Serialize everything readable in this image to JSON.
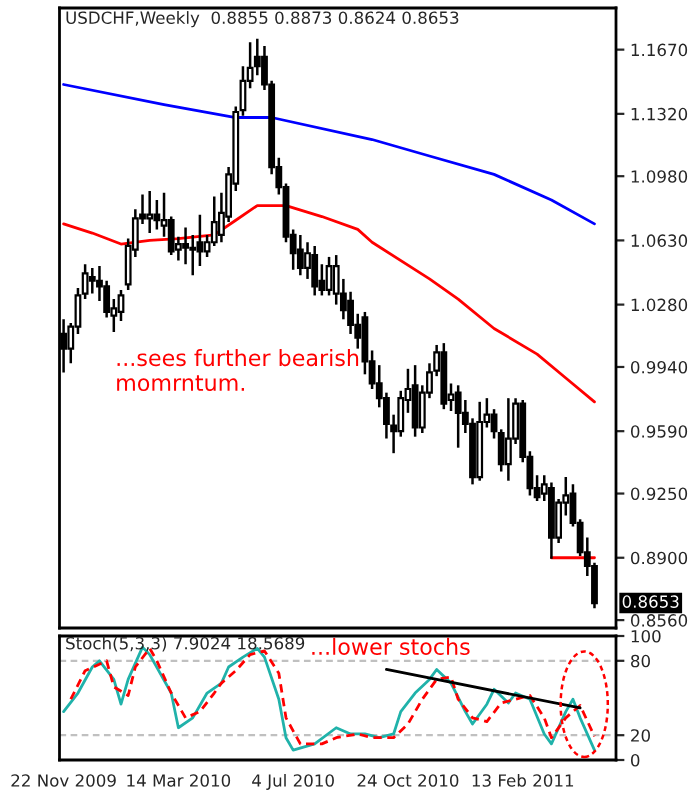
{
  "chart_data": [
    {
      "type": "candlestick",
      "title": "USDCHF,Weekly  0.8855 0.8873 0.8624 0.8653",
      "x": [
        "2009-11-22",
        "2009-11-29",
        "2009-12-06",
        "2009-12-13",
        "2009-12-20",
        "2009-12-27",
        "2010-01-03",
        "2010-01-10",
        "2010-01-17",
        "2010-01-24",
        "2010-01-31",
        "2010-02-07",
        "2010-02-14",
        "2010-02-21",
        "2010-02-28",
        "2010-03-07",
        "2010-03-14",
        "2010-03-21",
        "2010-03-28",
        "2010-04-04",
        "2010-04-11",
        "2010-04-18",
        "2010-04-25",
        "2010-05-02",
        "2010-05-09",
        "2010-05-16",
        "2010-05-23",
        "2010-05-30",
        "2010-06-06",
        "2010-06-13",
        "2010-06-20",
        "2010-06-27",
        "2010-07-04",
        "2010-07-11",
        "2010-07-18",
        "2010-07-25",
        "2010-08-01",
        "2010-08-08",
        "2010-08-15",
        "2010-08-22",
        "2010-08-29",
        "2010-09-05",
        "2010-09-12",
        "2010-09-19",
        "2010-09-26",
        "2010-10-03",
        "2010-10-10",
        "2010-10-17",
        "2010-10-24",
        "2010-10-31",
        "2010-11-07",
        "2010-11-14",
        "2010-11-21",
        "2010-11-28",
        "2010-12-05",
        "2010-12-12",
        "2010-12-19",
        "2010-12-26",
        "2011-01-02",
        "2011-01-09",
        "2011-01-16",
        "2011-01-23",
        "2011-01-30",
        "2011-02-06",
        "2011-02-13",
        "2011-02-20",
        "2011-02-27",
        "2011-03-06",
        "2011-03-13",
        "2011-03-20",
        "2011-03-27",
        "2011-04-03",
        "2011-04-10",
        "2011-04-17",
        "2011-04-24"
      ],
      "ohlc": [
        [
          1.012,
          1.02,
          0.991,
          1.004
        ],
        [
          1.004,
          1.018,
          0.996,
          1.016
        ],
        [
          1.016,
          1.037,
          1.012,
          1.033
        ],
        [
          1.034,
          1.05,
          1.031,
          1.045
        ],
        [
          1.043,
          1.048,
          1.034,
          1.041
        ],
        [
          1.041,
          1.049,
          1.03,
          1.038
        ],
        [
          1.038,
          1.041,
          1.021,
          1.024
        ],
        [
          1.022,
          1.031,
          1.013,
          1.026
        ],
        [
          1.024,
          1.036,
          1.019,
          1.033
        ],
        [
          1.039,
          1.064,
          1.036,
          1.06
        ],
        [
          1.058,
          1.08,
          1.054,
          1.075
        ],
        [
          1.077,
          1.088,
          1.072,
          1.075
        ],
        [
          1.075,
          1.09,
          1.067,
          1.077
        ],
        [
          1.077,
          1.085,
          1.069,
          1.074
        ],
        [
          1.071,
          1.089,
          1.065,
          1.074
        ],
        [
          1.074,
          1.076,
          1.055,
          1.057
        ],
        [
          1.058,
          1.065,
          1.052,
          1.061
        ],
        [
          1.061,
          1.07,
          1.05,
          1.059
        ],
        [
          1.059,
          1.066,
          1.044,
          1.058
        ],
        [
          1.062,
          1.077,
          1.049,
          1.057
        ],
        [
          1.057,
          1.066,
          1.054,
          1.062
        ],
        [
          1.062,
          1.087,
          1.06,
          1.073
        ],
        [
          1.066,
          1.089,
          1.062,
          1.078
        ],
        [
          1.076,
          1.103,
          1.073,
          1.099
        ],
        [
          1.094,
          1.136,
          1.09,
          1.133
        ],
        [
          1.134,
          1.158,
          1.131,
          1.15
        ],
        [
          1.15,
          1.171,
          1.146,
          1.157
        ],
        [
          1.163,
          1.173,
          1.153,
          1.158
        ],
        [
          1.163,
          1.169,
          1.145,
          1.148
        ],
        [
          1.148,
          1.15,
          1.099,
          1.103
        ],
        [
          1.103,
          1.108,
          1.088,
          1.092
        ],
        [
          1.092,
          1.094,
          1.062,
          1.065
        ],
        [
          1.066,
          1.069,
          1.047,
          1.056
        ],
        [
          1.058,
          1.066,
          1.044,
          1.048
        ],
        [
          1.048,
          1.062,
          1.042,
          1.056
        ],
        [
          1.055,
          1.06,
          1.033,
          1.038
        ],
        [
          1.041,
          1.05,
          1.033,
          1.036
        ],
        [
          1.036,
          1.054,
          1.033,
          1.049
        ],
        [
          1.034,
          1.055,
          1.028,
          1.049
        ],
        [
          1.034,
          1.042,
          1.02,
          1.025
        ],
        [
          1.03,
          1.035,
          1.012,
          1.017
        ],
        [
          1.017,
          1.023,
          1.004,
          1.01
        ],
        [
          1.021,
          1.024,
          0.99,
          0.997
        ],
        [
          0.997,
          1.003,
          0.982,
          0.985
        ],
        [
          0.985,
          0.995,
          0.972,
          0.977
        ],
        [
          0.977,
          0.98,
          0.955,
          0.963
        ],
        [
          0.962,
          0.968,
          0.947,
          0.959
        ],
        [
          0.959,
          0.981,
          0.956,
          0.977
        ],
        [
          0.976,
          0.993,
          0.969,
          0.982
        ],
        [
          0.984,
          0.995,
          0.956,
          0.961
        ],
        [
          0.961,
          0.984,
          0.958,
          0.98
        ],
        [
          0.98,
          0.996,
          0.977,
          0.991
        ],
        [
          0.992,
          1.006,
          0.989,
          1.002
        ],
        [
          1.002,
          1.007,
          0.971,
          0.974
        ],
        [
          0.976,
          0.985,
          0.97,
          0.979
        ],
        [
          0.98,
          0.984,
          0.95,
          0.969
        ],
        [
          0.969,
          0.976,
          0.958,
          0.963
        ],
        [
          0.963,
          0.966,
          0.93,
          0.934
        ],
        [
          0.934,
          0.975,
          0.932,
          0.964
        ],
        [
          0.964,
          0.977,
          0.961,
          0.968
        ],
        [
          0.968,
          0.971,
          0.955,
          0.959
        ],
        [
          0.958,
          0.96,
          0.937,
          0.941
        ],
        [
          0.941,
          0.977,
          0.932,
          0.955
        ],
        [
          0.955,
          0.977,
          0.952,
          0.974
        ],
        [
          0.974,
          0.976,
          0.942,
          0.945
        ],
        [
          0.945,
          0.948,
          0.924,
          0.928
        ],
        [
          0.928,
          0.935,
          0.921,
          0.923
        ],
        [
          0.925,
          0.935,
          0.921,
          0.93
        ],
        [
          0.928,
          0.931,
          0.8895,
          0.901
        ],
        [
          0.901,
          0.922,
          0.898,
          0.92
        ],
        [
          0.92,
          0.934,
          0.913,
          0.924
        ],
        [
          0.925,
          0.93,
          0.907,
          0.909
        ],
        [
          0.909,
          0.911,
          0.891,
          0.893
        ],
        [
          0.893,
          0.901,
          0.88,
          0.8855
        ],
        [
          0.8855,
          0.8873,
          0.8624,
          0.8653
        ]
      ],
      "series": [
        {
          "type": "line",
          "color": "#0000ff",
          "x": [
            "2009-11-22",
            "2010-02-28",
            "2010-05-09",
            "2010-06-13",
            "2010-09-19",
            "2010-11-14",
            "2011-01-16",
            "2011-03-13",
            "2011-04-24"
          ],
          "values": [
            1.148,
            1.137,
            1.13,
            1.13,
            1.118,
            1.109,
            1.099,
            1.085,
            1.072
          ]
        },
        {
          "type": "line",
          "color": "#ff0000",
          "x": [
            "2009-11-22",
            "2009-12-20",
            "2010-01-17",
            "2010-02-14",
            "2010-03-14",
            "2010-04-18",
            "2010-05-09",
            "2010-05-30",
            "2010-06-27",
            "2010-08-01",
            "2010-09-05",
            "2010-09-19",
            "2010-11-14",
            "2010-12-12",
            "2011-01-16",
            "2011-02-27",
            "2011-03-27",
            "2011-04-24"
          ],
          "values": [
            1.072,
            1.067,
            1.061,
            1.063,
            1.064,
            1.066,
            1.074,
            1.082,
            1.082,
            1.076,
            1.069,
            1.062,
            1.042,
            1.031,
            1.015,
            1.001,
            0.988,
            0.975
          ]
        },
        {
          "type": "line",
          "color": "#ff0000",
          "x": [
            "2011-03-13",
            "2011-04-24"
          ],
          "values": [
            0.89,
            0.89
          ]
        }
      ],
      "xlim": [
        "2009-11-18",
        "2011-05-15"
      ],
      "ylim": [
        0.8517,
        1.1897
      ],
      "yticks": [
        {
          "value": 0.856,
          "label": "0.8560"
        },
        {
          "value": 0.89,
          "label": "0.8900"
        },
        {
          "value": 0.925,
          "label": "0.9250"
        },
        {
          "value": 0.959,
          "label": "0.9590"
        },
        {
          "value": 0.994,
          "label": "0.9940"
        },
        {
          "value": 1.028,
          "label": "1.0280"
        },
        {
          "value": 1.063,
          "label": "1.0630"
        },
        {
          "value": 1.098,
          "label": "1.0980"
        },
        {
          "value": 1.132,
          "label": "1.1320"
        },
        {
          "value": 1.167,
          "label": "1.1670"
        }
      ],
      "tick_labels": "y",
      "annotations": [
        "...sees further bearish\nmomrntum.",
        {
          "text": "0.8653",
          "x": "2011-04-24",
          "y": 0.8653
        }
      ]
    },
    {
      "type": "line",
      "title": "Stoch(5,3,3) 7.9024 18.5689",
      "series": [
        {
          "type": "line",
          "color": "#20b2aa",
          "x": [
            "2009-11-22",
            "2009-12-06",
            "2009-12-20",
            "2009-12-27",
            "2010-01-10",
            "2010-01-17",
            "2010-01-24",
            "2010-02-07",
            "2010-02-14",
            "2010-03-07",
            "2010-03-14",
            "2010-03-28",
            "2010-04-11",
            "2010-04-25",
            "2010-05-02",
            "2010-05-16",
            "2010-05-30",
            "2010-06-06",
            "2010-06-20",
            "2010-06-27",
            "2010-07-04",
            "2010-07-25",
            "2010-08-15",
            "2010-08-29",
            "2010-09-12",
            "2010-09-26",
            "2010-10-10",
            "2010-10-17",
            "2010-10-31",
            "2010-11-14",
            "2010-11-21",
            "2010-12-05",
            "2010-12-19",
            "2010-12-26",
            "2011-01-09",
            "2011-01-16",
            "2011-01-30",
            "2011-02-06",
            "2011-02-20",
            "2011-03-06",
            "2011-03-13",
            "2011-03-27",
            "2011-04-03",
            "2011-04-10",
            "2011-04-24"
          ],
          "values": [
            39,
            54,
            75,
            80,
            65,
            45,
            65,
            91,
            85,
            54,
            26,
            34,
            54,
            62,
            75,
            83,
            90,
            83,
            49,
            18,
            8,
            13,
            26,
            21,
            21,
            18,
            21,
            39,
            54,
            65,
            73,
            62,
            39,
            29,
            45,
            57,
            46,
            54,
            49,
            21,
            13,
            39,
            49,
            34,
            8
          ]
        },
        {
          "type": "line",
          "color": "#ff0000",
          "line_style": "dashed",
          "x": [
            "2009-11-29",
            "2009-12-13",
            "2010-01-03",
            "2010-01-10",
            "2010-01-24",
            "2010-01-31",
            "2010-02-14",
            "2010-02-21",
            "2010-03-07",
            "2010-03-21",
            "2010-04-04",
            "2010-04-18",
            "2010-04-25",
            "2010-05-09",
            "2010-05-23",
            "2010-06-06",
            "2010-06-20",
            "2010-06-27",
            "2010-07-11",
            "2010-08-01",
            "2010-08-15",
            "2010-09-05",
            "2010-09-19",
            "2010-10-10",
            "2010-10-24",
            "2010-11-07",
            "2010-11-21",
            "2010-12-05",
            "2010-12-12",
            "2010-12-26",
            "2011-01-09",
            "2011-01-23",
            "2011-02-06",
            "2011-02-20",
            "2011-03-06",
            "2011-03-13",
            "2011-03-27",
            "2011-04-10",
            "2011-04-24"
          ],
          "values": [
            49,
            72,
            80,
            59,
            52,
            75,
            90,
            80,
            54,
            34,
            39,
            54,
            62,
            72,
            85,
            88,
            70,
            34,
            13,
            13,
            18,
            21,
            18,
            18,
            29,
            49,
            65,
            67,
            49,
            34,
            31,
            46,
            49,
            52,
            34,
            18,
            34,
            44,
            19
          ]
        },
        {
          "type": "line",
          "color": "#000000",
          "x": [
            "2010-10-03",
            "2011-04-10"
          ],
          "values": [
            73,
            42
          ]
        }
      ],
      "ref_lines": [
        {
          "axis": "y",
          "value": 80,
          "color": "#c0c0c0",
          "line_style": "dashed"
        },
        {
          "axis": "y",
          "value": 20,
          "color": "#c0c0c0",
          "line_style": "dashed"
        }
      ],
      "xlim": [
        "2009-11-18",
        "2011-05-15"
      ],
      "xticks": [
        {
          "value": "2009-11-22",
          "label": "22 Nov 2009"
        },
        {
          "value": "2010-03-14",
          "label": "14 Mar 2010"
        },
        {
          "value": "2010-07-04",
          "label": "4 Jul 2010"
        },
        {
          "value": "2010-10-24",
          "label": "24 Oct 2010"
        },
        {
          "value": "2011-02-13",
          "label": "13 Feb 2011"
        }
      ],
      "ylim": [
        0,
        100
      ],
      "yticks": [
        0,
        20,
        80,
        100
      ],
      "annotations": [
        "...lower stochs"
      ]
    }
  ]
}
